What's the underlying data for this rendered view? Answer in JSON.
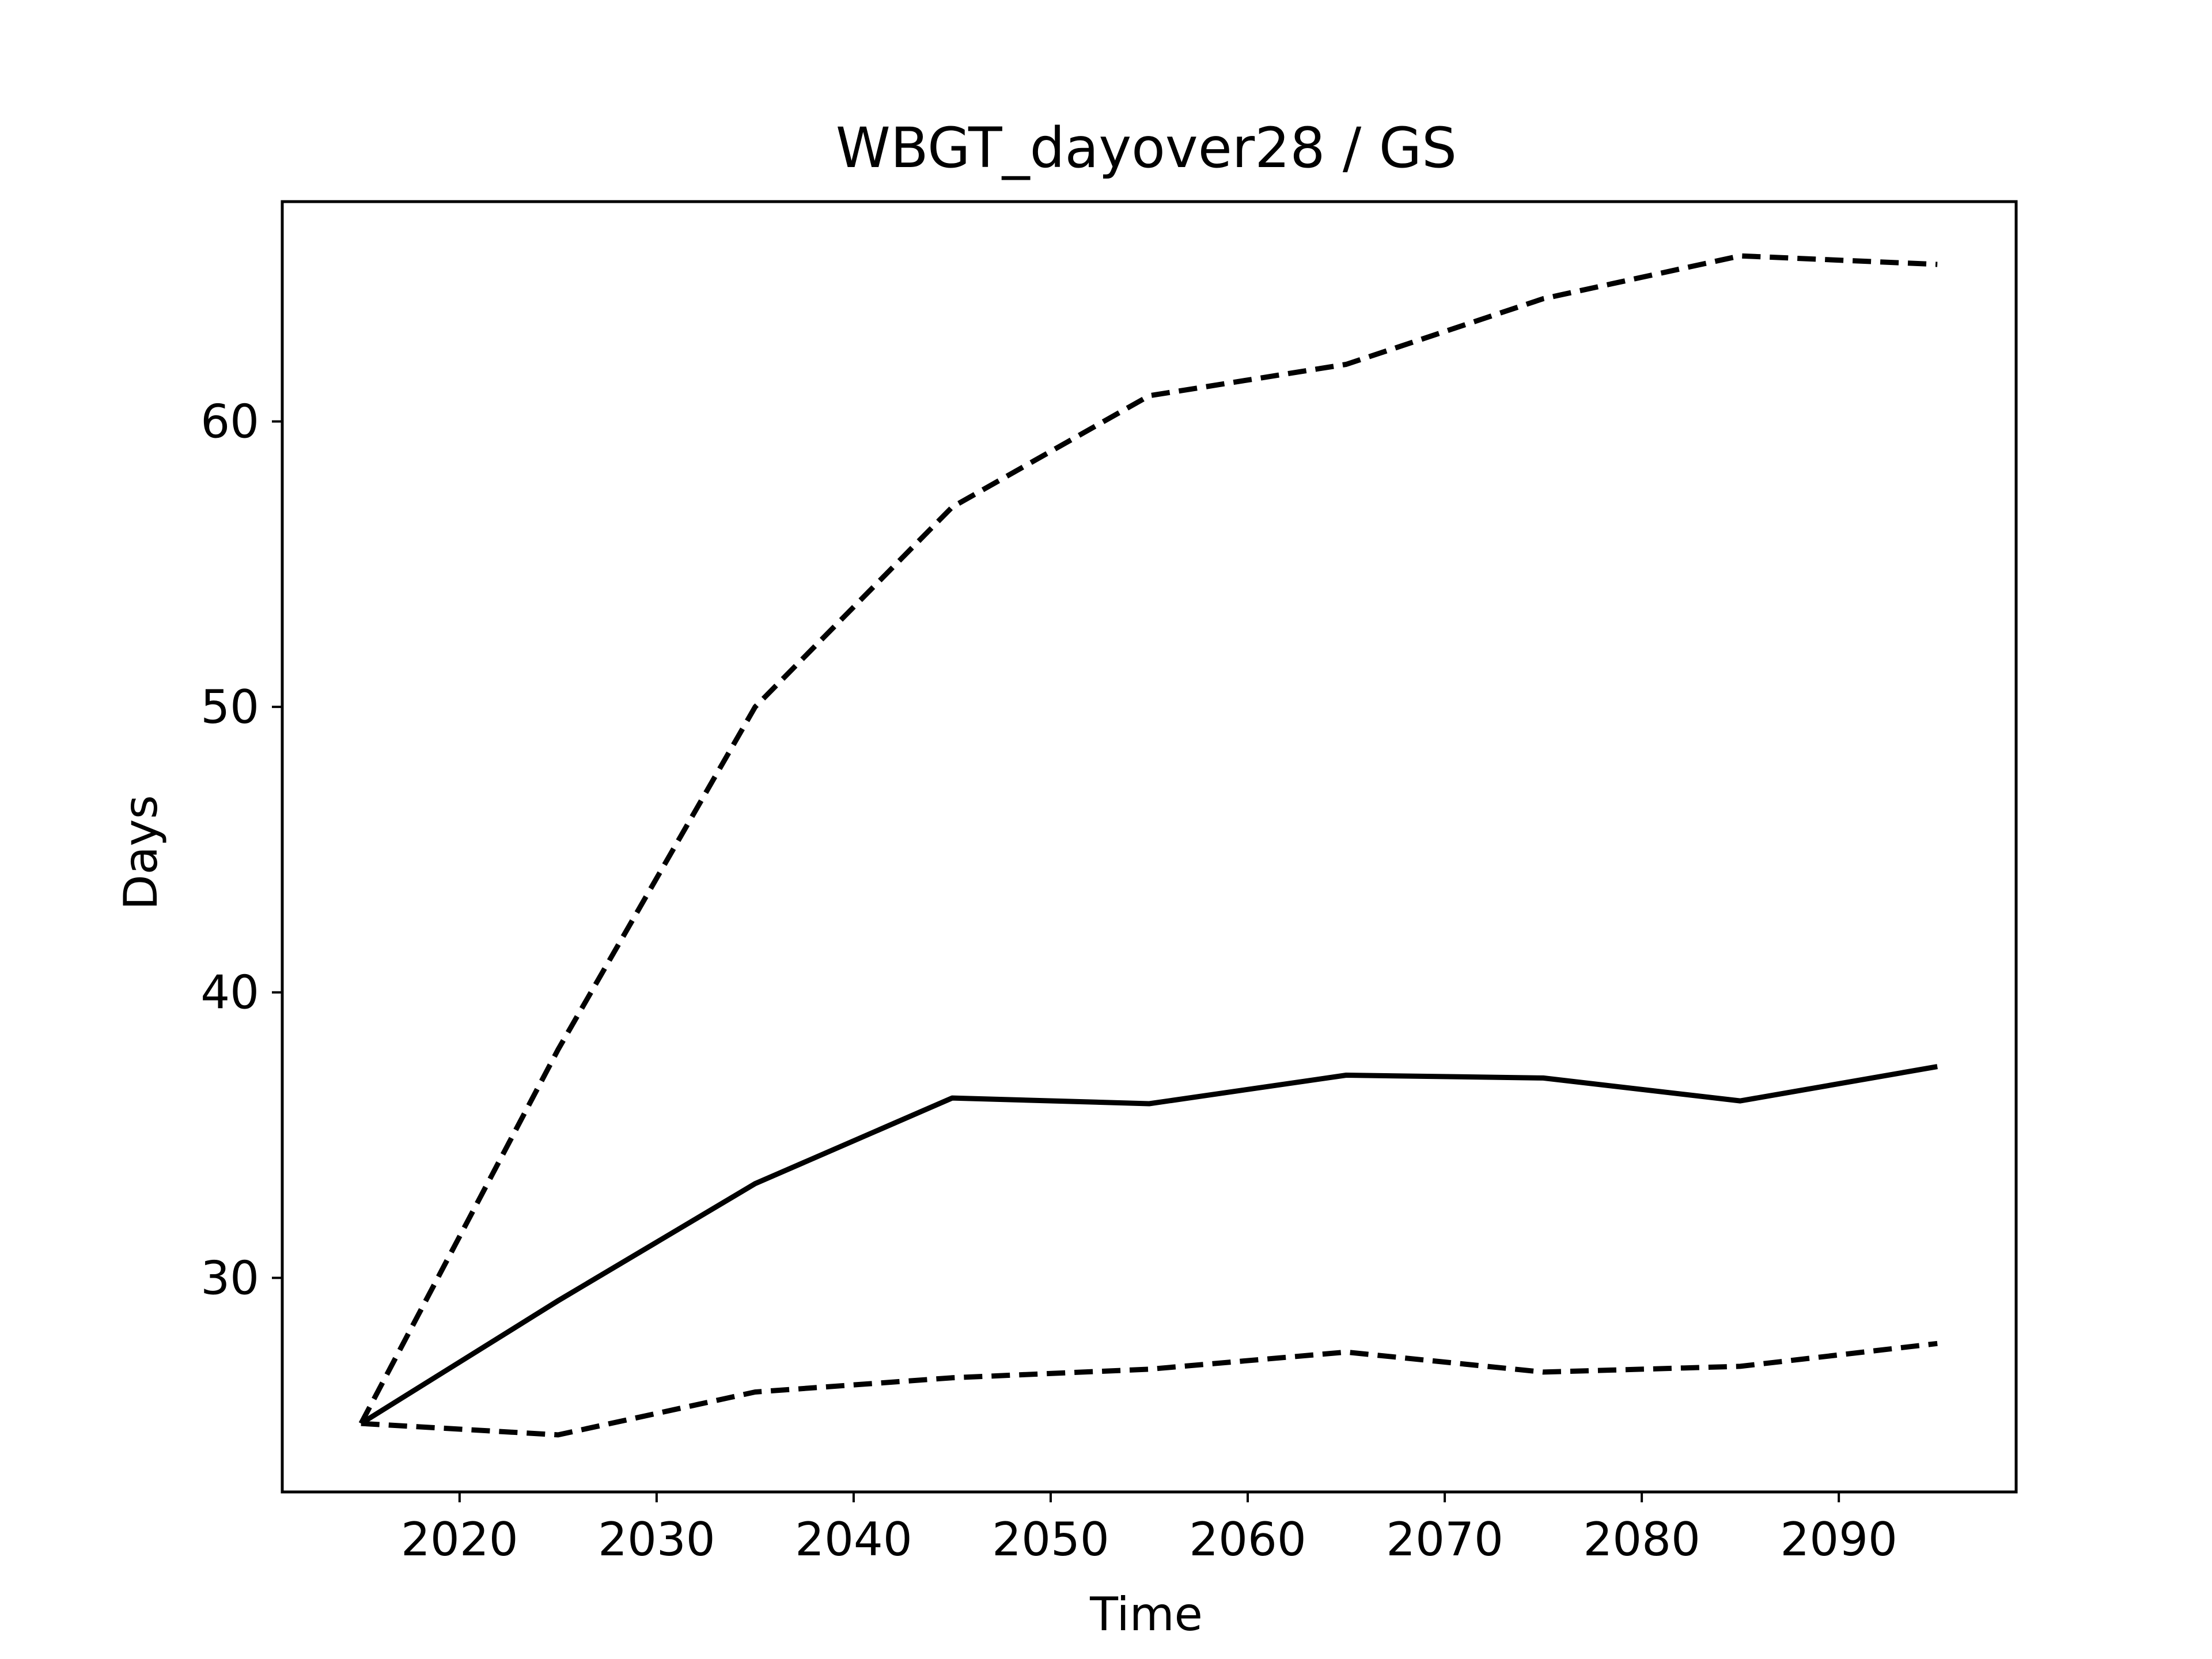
{
  "chart_data": {
    "type": "line",
    "title": "WBGT_dayover28 / GS",
    "xlabel": "Time",
    "ylabel": "Days",
    "xlim": [
      2011,
      2099
    ],
    "ylim": [
      22.5,
      67.7
    ],
    "x_ticks": [
      2020,
      2030,
      2040,
      2050,
      2060,
      2070,
      2080,
      2090
    ],
    "y_ticks": [
      30,
      40,
      50,
      60
    ],
    "grid": false,
    "legend": "none",
    "x": [
      2015,
      2025,
      2035,
      2045,
      2055,
      2065,
      2075,
      2085,
      2095
    ],
    "series": [
      {
        "style": "dashed",
        "color": "#000000",
        "values": [
          24.9,
          38.0,
          50.0,
          57.0,
          60.9,
          62.0,
          64.3,
          65.8,
          65.5
        ]
      },
      {
        "style": "solid",
        "color": "#000000",
        "values": [
          24.9,
          29.2,
          33.3,
          36.3,
          36.1,
          37.1,
          37.0,
          36.2,
          37.4
        ]
      },
      {
        "style": "dashed",
        "color": "#000000",
        "values": [
          24.9,
          24.5,
          26.0,
          26.5,
          26.8,
          27.4,
          26.7,
          26.9,
          27.7
        ]
      }
    ]
  }
}
